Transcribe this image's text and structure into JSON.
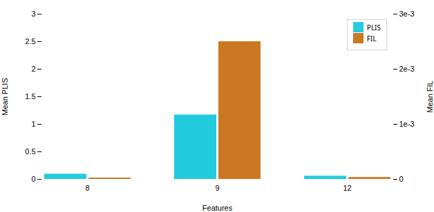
{
  "chart_data": {
    "type": "bar",
    "categories": [
      "8",
      "9",
      "12"
    ],
    "series": [
      {
        "name": "PLIS",
        "color": "#22CCDD",
        "values": [
          0.095,
          1.17,
          0.058
        ]
      },
      {
        "name": "FIL",
        "color": "#CC7722",
        "values": [
          2.5e-05,
          0.0025,
          3.5e-05
        ],
        "axis": "y2"
      }
    ],
    "xlabel": "Features",
    "ylabel": "Mean PLIS",
    "y2label": "Mean FIL",
    "ylim": [
      0,
      3.0
    ],
    "yticks": [
      0,
      0.5,
      1,
      1.5,
      2,
      2.5,
      3
    ],
    "y2lim": [
      0,
      0.003
    ],
    "y2ticks": [
      0,
      {
        "value": 0.001,
        "label": "1e-3"
      },
      {
        "value": 0.002,
        "label": "2e-3"
      },
      {
        "value": 0.003,
        "label": "3e-3"
      }
    ],
    "legend": "upper right",
    "grid": false
  }
}
